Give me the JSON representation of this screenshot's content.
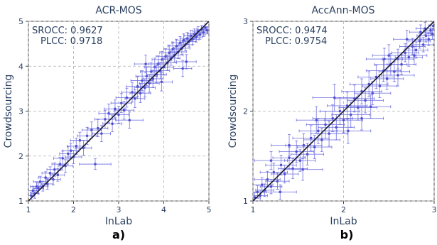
{
  "chart_data": [
    {
      "type": "scatter",
      "panel_label": "a)",
      "title": "ACR-MOS",
      "xlabel": "InLab",
      "ylabel": "Crowdsourcing",
      "xlim": [
        1,
        5
      ],
      "ylim": [
        1,
        5
      ],
      "xticks": [
        "1",
        "2",
        "3",
        "4",
        "5"
      ],
      "yticks": [
        "1",
        "2",
        "3",
        "4",
        "5"
      ],
      "grid": true,
      "stats": {
        "srocc": "SROCC: 0.9627",
        "plcc": "PLCC: 0.9718"
      },
      "reference_line": {
        "from": [
          1,
          1
        ],
        "to": [
          5,
          5
        ]
      },
      "points": [
        {
          "x": 1.06,
          "y": 1.12,
          "ex": 0.08,
          "ey": 0.08
        },
        {
          "x": 1.1,
          "y": 1.23,
          "ex": 0.12,
          "ey": 0.1
        },
        {
          "x": 1.14,
          "y": 1.17,
          "ex": 0.09,
          "ey": 0.11
        },
        {
          "x": 1.18,
          "y": 1.32,
          "ex": 0.14,
          "ey": 0.1
        },
        {
          "x": 1.22,
          "y": 1.28,
          "ex": 0.12,
          "ey": 0.12
        },
        {
          "x": 1.26,
          "y": 1.43,
          "ex": 0.15,
          "ey": 0.12
        },
        {
          "x": 1.32,
          "y": 1.33,
          "ex": 0.12,
          "ey": 0.11
        },
        {
          "x": 1.38,
          "y": 1.52,
          "ex": 0.16,
          "ey": 0.13
        },
        {
          "x": 1.42,
          "y": 1.38,
          "ex": 0.13,
          "ey": 0.12
        },
        {
          "x": 1.48,
          "y": 1.62,
          "ex": 0.18,
          "ey": 0.14
        },
        {
          "x": 1.55,
          "y": 1.48,
          "ex": 0.16,
          "ey": 0.12
        },
        {
          "x": 1.58,
          "y": 1.7,
          "ex": 0.17,
          "ey": 0.15
        },
        {
          "x": 1.65,
          "y": 1.58,
          "ex": 0.15,
          "ey": 0.14
        },
        {
          "x": 1.7,
          "y": 1.82,
          "ex": 0.18,
          "ey": 0.15
        },
        {
          "x": 1.76,
          "y": 1.95,
          "ex": 0.2,
          "ey": 0.16
        },
        {
          "x": 1.82,
          "y": 1.78,
          "ex": 0.16,
          "ey": 0.14
        },
        {
          "x": 1.88,
          "y": 2.05,
          "ex": 0.19,
          "ey": 0.16
        },
        {
          "x": 1.94,
          "y": 2.12,
          "ex": 0.18,
          "ey": 0.17
        },
        {
          "x": 2.0,
          "y": 1.98,
          "ex": 0.18,
          "ey": 0.15
        },
        {
          "x": 2.06,
          "y": 2.22,
          "ex": 0.2,
          "ey": 0.18
        },
        {
          "x": 2.14,
          "y": 2.35,
          "ex": 0.21,
          "ey": 0.18
        },
        {
          "x": 2.22,
          "y": 2.18,
          "ex": 0.18,
          "ey": 0.16
        },
        {
          "x": 2.3,
          "y": 2.45,
          "ex": 0.22,
          "ey": 0.19
        },
        {
          "x": 2.4,
          "y": 2.58,
          "ex": 0.21,
          "ey": 0.18
        },
        {
          "x": 2.48,
          "y": 1.82,
          "ex": 0.35,
          "ey": 0.12
        },
        {
          "x": 2.54,
          "y": 2.62,
          "ex": 0.22,
          "ey": 0.19
        },
        {
          "x": 2.62,
          "y": 2.5,
          "ex": 0.2,
          "ey": 0.18
        },
        {
          "x": 2.7,
          "y": 2.82,
          "ex": 0.23,
          "ey": 0.2
        },
        {
          "x": 2.78,
          "y": 2.95,
          "ex": 0.22,
          "ey": 0.21
        },
        {
          "x": 2.86,
          "y": 2.72,
          "ex": 0.21,
          "ey": 0.18
        },
        {
          "x": 2.92,
          "y": 3.05,
          "ex": 0.24,
          "ey": 0.2
        },
        {
          "x": 3.0,
          "y": 2.92,
          "ex": 0.22,
          "ey": 0.19
        },
        {
          "x": 3.06,
          "y": 3.18,
          "ex": 0.23,
          "ey": 0.21
        },
        {
          "x": 3.12,
          "y": 3.02,
          "ex": 0.22,
          "ey": 0.2
        },
        {
          "x": 3.18,
          "y": 3.3,
          "ex": 0.24,
          "ey": 0.21
        },
        {
          "x": 3.24,
          "y": 2.8,
          "ex": 0.3,
          "ey": 0.18
        },
        {
          "x": 3.3,
          "y": 3.42,
          "ex": 0.24,
          "ey": 0.22
        },
        {
          "x": 3.36,
          "y": 3.28,
          "ex": 0.22,
          "ey": 0.2
        },
        {
          "x": 3.42,
          "y": 3.55,
          "ex": 0.25,
          "ey": 0.22
        },
        {
          "x": 3.48,
          "y": 3.4,
          "ex": 0.23,
          "ey": 0.21
        },
        {
          "x": 3.52,
          "y": 3.68,
          "ex": 0.25,
          "ey": 0.22
        },
        {
          "x": 3.58,
          "y": 3.52,
          "ex": 0.23,
          "ey": 0.2
        },
        {
          "x": 3.62,
          "y": 3.78,
          "ex": 0.24,
          "ey": 0.21
        },
        {
          "x": 3.68,
          "y": 3.62,
          "ex": 0.22,
          "ey": 0.2
        },
        {
          "x": 3.72,
          "y": 3.88,
          "ex": 0.24,
          "ey": 0.2
        },
        {
          "x": 3.76,
          "y": 3.72,
          "ex": 0.22,
          "ey": 0.19
        },
        {
          "x": 3.8,
          "y": 3.98,
          "ex": 0.23,
          "ey": 0.2
        },
        {
          "x": 3.84,
          "y": 3.82,
          "ex": 0.22,
          "ey": 0.19
        },
        {
          "x": 3.88,
          "y": 4.05,
          "ex": 0.22,
          "ey": 0.18
        },
        {
          "x": 3.92,
          "y": 3.9,
          "ex": 0.21,
          "ey": 0.18
        },
        {
          "x": 3.96,
          "y": 4.15,
          "ex": 0.22,
          "ey": 0.18
        },
        {
          "x": 4.0,
          "y": 3.98,
          "ex": 0.21,
          "ey": 0.18
        },
        {
          "x": 4.04,
          "y": 4.22,
          "ex": 0.21,
          "ey": 0.17
        },
        {
          "x": 4.08,
          "y": 4.08,
          "ex": 0.2,
          "ey": 0.17
        },
        {
          "x": 4.12,
          "y": 4.3,
          "ex": 0.21,
          "ey": 0.17
        },
        {
          "x": 4.16,
          "y": 4.18,
          "ex": 0.2,
          "ey": 0.16
        },
        {
          "x": 4.2,
          "y": 4.38,
          "ex": 0.2,
          "ey": 0.16
        },
        {
          "x": 4.24,
          "y": 4.25,
          "ex": 0.19,
          "ey": 0.16
        },
        {
          "x": 4.28,
          "y": 4.45,
          "ex": 0.19,
          "ey": 0.15
        },
        {
          "x": 4.32,
          "y": 4.32,
          "ex": 0.18,
          "ey": 0.15
        },
        {
          "x": 4.36,
          "y": 4.52,
          "ex": 0.18,
          "ey": 0.14
        },
        {
          "x": 4.4,
          "y": 4.4,
          "ex": 0.18,
          "ey": 0.14
        },
        {
          "x": 4.44,
          "y": 4.58,
          "ex": 0.17,
          "ey": 0.14
        },
        {
          "x": 4.48,
          "y": 4.48,
          "ex": 0.16,
          "ey": 0.13
        },
        {
          "x": 4.52,
          "y": 4.62,
          "ex": 0.16,
          "ey": 0.13
        },
        {
          "x": 4.56,
          "y": 4.55,
          "ex": 0.15,
          "ey": 0.12
        },
        {
          "x": 4.6,
          "y": 4.68,
          "ex": 0.15,
          "ey": 0.12
        },
        {
          "x": 4.64,
          "y": 4.6,
          "ex": 0.14,
          "ey": 0.12
        },
        {
          "x": 4.68,
          "y": 4.72,
          "ex": 0.14,
          "ey": 0.11
        },
        {
          "x": 4.72,
          "y": 4.65,
          "ex": 0.13,
          "ey": 0.11
        },
        {
          "x": 4.76,
          "y": 4.78,
          "ex": 0.12,
          "ey": 0.1
        },
        {
          "x": 4.8,
          "y": 4.7,
          "ex": 0.12,
          "ey": 0.1
        },
        {
          "x": 4.84,
          "y": 4.82,
          "ex": 0.11,
          "ey": 0.09
        },
        {
          "x": 4.88,
          "y": 4.75,
          "ex": 0.1,
          "ey": 0.09
        },
        {
          "x": 4.92,
          "y": 4.86,
          "ex": 0.09,
          "ey": 0.08
        },
        {
          "x": 4.96,
          "y": 4.8,
          "ex": 0.08,
          "ey": 0.08
        },
        {
          "x": 4.5,
          "y": 4.1,
          "ex": 0.22,
          "ey": 0.16
        },
        {
          "x": 4.42,
          "y": 3.95,
          "ex": 0.2,
          "ey": 0.18
        },
        {
          "x": 3.6,
          "y": 4.05,
          "ex": 0.25,
          "ey": 0.2
        },
        {
          "x": 3.95,
          "y": 3.65,
          "ex": 0.24,
          "ey": 0.2
        }
      ]
    },
    {
      "type": "scatter",
      "panel_label": "b)",
      "title": "AccAnn-MOS",
      "xlabel": "InLab",
      "ylabel": "Crowdsourcing",
      "xlim": [
        1,
        3
      ],
      "ylim": [
        1,
        3
      ],
      "xticks": [
        "1",
        "2",
        "3"
      ],
      "yticks": [
        "1",
        "2",
        "3"
      ],
      "grid": true,
      "stats": {
        "srocc": "SROCC: 0.9474",
        "plcc": "PLCC: 0.9754"
      },
      "reference_line": {
        "from": [
          1,
          1
        ],
        "to": [
          3,
          3
        ]
      },
      "points": [
        {
          "x": 1.02,
          "y": 1.04,
          "ex": 0.06,
          "ey": 0.05
        },
        {
          "x": 1.05,
          "y": 1.1,
          "ex": 0.1,
          "ey": 0.07
        },
        {
          "x": 1.08,
          "y": 1.06,
          "ex": 0.08,
          "ey": 0.06
        },
        {
          "x": 1.1,
          "y": 1.18,
          "ex": 0.12,
          "ey": 0.08
        },
        {
          "x": 1.13,
          "y": 1.12,
          "ex": 0.1,
          "ey": 0.07
        },
        {
          "x": 1.16,
          "y": 1.24,
          "ex": 0.14,
          "ey": 0.09
        },
        {
          "x": 1.2,
          "y": 1.16,
          "ex": 0.12,
          "ey": 0.08
        },
        {
          "x": 1.23,
          "y": 1.32,
          "ex": 0.15,
          "ey": 0.1
        },
        {
          "x": 1.27,
          "y": 1.22,
          "ex": 0.13,
          "ey": 0.09
        },
        {
          "x": 1.31,
          "y": 1.4,
          "ex": 0.17,
          "ey": 0.11
        },
        {
          "x": 1.35,
          "y": 1.3,
          "ex": 0.15,
          "ey": 0.1
        },
        {
          "x": 1.4,
          "y": 1.48,
          "ex": 0.18,
          "ey": 0.12
        },
        {
          "x": 1.44,
          "y": 1.36,
          "ex": 0.16,
          "ey": 0.11
        },
        {
          "x": 1.48,
          "y": 1.55,
          "ex": 0.19,
          "ey": 0.12
        },
        {
          "x": 1.52,
          "y": 1.45,
          "ex": 0.17,
          "ey": 0.12
        },
        {
          "x": 1.56,
          "y": 1.62,
          "ex": 0.2,
          "ey": 0.13
        },
        {
          "x": 1.6,
          "y": 1.52,
          "ex": 0.18,
          "ey": 0.12
        },
        {
          "x": 1.64,
          "y": 1.7,
          "ex": 0.2,
          "ey": 0.14
        },
        {
          "x": 1.68,
          "y": 1.6,
          "ex": 0.19,
          "ey": 0.13
        },
        {
          "x": 1.72,
          "y": 1.78,
          "ex": 0.21,
          "ey": 0.14
        },
        {
          "x": 1.76,
          "y": 1.68,
          "ex": 0.2,
          "ey": 0.13
        },
        {
          "x": 1.8,
          "y": 1.85,
          "ex": 0.21,
          "ey": 0.15
        },
        {
          "x": 1.84,
          "y": 1.75,
          "ex": 0.2,
          "ey": 0.14
        },
        {
          "x": 1.88,
          "y": 1.92,
          "ex": 0.22,
          "ey": 0.15
        },
        {
          "x": 1.92,
          "y": 1.82,
          "ex": 0.2,
          "ey": 0.14
        },
        {
          "x": 1.96,
          "y": 2.0,
          "ex": 0.22,
          "ey": 0.15
        },
        {
          "x": 2.0,
          "y": 1.9,
          "ex": 0.21,
          "ey": 0.14
        },
        {
          "x": 2.04,
          "y": 2.06,
          "ex": 0.22,
          "ey": 0.15
        },
        {
          "x": 2.08,
          "y": 1.96,
          "ex": 0.21,
          "ey": 0.14
        },
        {
          "x": 2.12,
          "y": 2.14,
          "ex": 0.22,
          "ey": 0.15
        },
        {
          "x": 2.16,
          "y": 2.04,
          "ex": 0.21,
          "ey": 0.14
        },
        {
          "x": 2.2,
          "y": 2.22,
          "ex": 0.22,
          "ey": 0.14
        },
        {
          "x": 2.24,
          "y": 2.12,
          "ex": 0.2,
          "ey": 0.14
        },
        {
          "x": 2.28,
          "y": 2.3,
          "ex": 0.21,
          "ey": 0.14
        },
        {
          "x": 2.32,
          "y": 2.2,
          "ex": 0.2,
          "ey": 0.13
        },
        {
          "x": 2.36,
          "y": 2.38,
          "ex": 0.2,
          "ey": 0.13
        },
        {
          "x": 2.4,
          "y": 2.28,
          "ex": 0.19,
          "ey": 0.13
        },
        {
          "x": 2.44,
          "y": 2.45,
          "ex": 0.19,
          "ey": 0.12
        },
        {
          "x": 2.48,
          "y": 2.36,
          "ex": 0.18,
          "ey": 0.12
        },
        {
          "x": 2.52,
          "y": 2.52,
          "ex": 0.18,
          "ey": 0.12
        },
        {
          "x": 2.56,
          "y": 2.44,
          "ex": 0.17,
          "ey": 0.11
        },
        {
          "x": 2.6,
          "y": 2.58,
          "ex": 0.17,
          "ey": 0.11
        },
        {
          "x": 2.64,
          "y": 2.52,
          "ex": 0.16,
          "ey": 0.11
        },
        {
          "x": 2.68,
          "y": 2.65,
          "ex": 0.15,
          "ey": 0.1
        },
        {
          "x": 2.72,
          "y": 2.6,
          "ex": 0.15,
          "ey": 0.1
        },
        {
          "x": 2.76,
          "y": 2.72,
          "ex": 0.14,
          "ey": 0.09
        },
        {
          "x": 2.8,
          "y": 2.68,
          "ex": 0.13,
          "ey": 0.09
        },
        {
          "x": 2.84,
          "y": 2.78,
          "ex": 0.12,
          "ey": 0.08
        },
        {
          "x": 2.88,
          "y": 2.74,
          "ex": 0.11,
          "ey": 0.08
        },
        {
          "x": 2.91,
          "y": 2.84,
          "ex": 0.1,
          "ey": 0.07
        },
        {
          "x": 2.94,
          "y": 2.8,
          "ex": 0.09,
          "ey": 0.07
        },
        {
          "x": 2.96,
          "y": 2.9,
          "ex": 0.08,
          "ey": 0.06
        },
        {
          "x": 2.98,
          "y": 2.86,
          "ex": 0.07,
          "ey": 0.06
        },
        {
          "x": 2.99,
          "y": 2.95,
          "ex": 0.05,
          "ey": 0.04
        },
        {
          "x": 2.9,
          "y": 2.92,
          "ex": 0.1,
          "ey": 0.07
        },
        {
          "x": 2.85,
          "y": 2.88,
          "ex": 0.12,
          "ey": 0.08
        },
        {
          "x": 2.7,
          "y": 2.8,
          "ex": 0.15,
          "ey": 0.1
        },
        {
          "x": 2.78,
          "y": 2.62,
          "ex": 0.14,
          "ey": 0.1
        },
        {
          "x": 2.5,
          "y": 2.62,
          "ex": 0.18,
          "ey": 0.12
        },
        {
          "x": 2.3,
          "y": 2.05,
          "ex": 0.22,
          "ey": 0.13
        },
        {
          "x": 2.2,
          "y": 1.92,
          "ex": 0.24,
          "ey": 0.13
        },
        {
          "x": 1.7,
          "y": 1.9,
          "ex": 0.22,
          "ey": 0.15
        },
        {
          "x": 1.4,
          "y": 1.62,
          "ex": 0.2,
          "ey": 0.12
        },
        {
          "x": 1.3,
          "y": 1.1,
          "ex": 0.18,
          "ey": 0.08
        },
        {
          "x": 1.2,
          "y": 1.45,
          "ex": 0.18,
          "ey": 0.1
        },
        {
          "x": 1.55,
          "y": 1.35,
          "ex": 0.22,
          "ey": 0.12
        },
        {
          "x": 1.9,
          "y": 2.15,
          "ex": 0.24,
          "ey": 0.15
        },
        {
          "x": 2.05,
          "y": 1.78,
          "ex": 0.25,
          "ey": 0.14
        },
        {
          "x": 2.6,
          "y": 2.4,
          "ex": 0.18,
          "ey": 0.12
        },
        {
          "x": 2.45,
          "y": 2.58,
          "ex": 0.2,
          "ey": 0.12
        }
      ]
    }
  ],
  "colors": {
    "marker": "#5050d0",
    "errorbar": "#6a6ae0",
    "reference_line": "#1a1a2e",
    "grid": "#b0b0b0",
    "text": "#2a3f5f"
  }
}
